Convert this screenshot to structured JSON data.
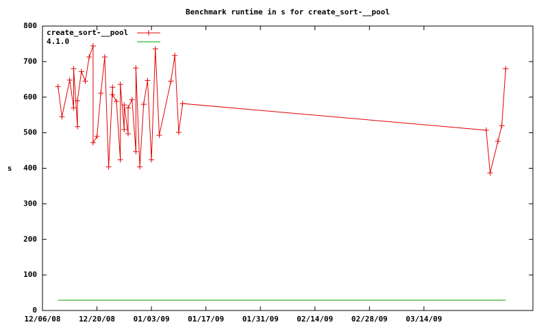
{
  "chart_data": {
    "type": "line",
    "title": "Benchmark runtime in s for create_sort-__pool",
    "y_label": "s",
    "xlim": [
      "2008-12-06",
      "2009-04-11"
    ],
    "xticks": [
      {
        "value": "2008-12-06",
        "label": "12/06/08"
      },
      {
        "value": "2008-12-20",
        "label": "12/20/08"
      },
      {
        "value": "2009-01-03",
        "label": "01/03/09"
      },
      {
        "value": "2009-01-17",
        "label": "01/17/09"
      },
      {
        "value": "2009-01-31",
        "label": "01/31/09"
      },
      {
        "value": "2009-02-14",
        "label": "02/14/09"
      },
      {
        "value": "2009-02-28",
        "label": "02/28/09"
      },
      {
        "value": "2009-03-14",
        "label": "03/14/09"
      }
    ],
    "ylim": [
      0,
      800
    ],
    "yticks": [
      0,
      100,
      200,
      300,
      400,
      500,
      600,
      700,
      800
    ],
    "legend": "top-left",
    "series": [
      {
        "name": "create_sort-__pool",
        "color": "#e00000",
        "marker": "plus",
        "x": [
          "2008-12-10",
          "2008-12-11",
          "2008-12-13",
          "2008-12-14",
          "2008-12-14",
          "2008-12-15",
          "2008-12-15",
          "2008-12-16",
          "2008-12-17",
          "2008-12-18",
          "2008-12-19",
          "2008-12-19",
          "2008-12-20",
          "2008-12-21",
          "2008-12-22",
          "2008-12-23",
          "2008-12-24",
          "2008-12-24",
          "2008-12-25",
          "2008-12-26",
          "2008-12-26",
          "2008-12-27",
          "2008-12-27",
          "2008-12-28",
          "2008-12-28",
          "2008-12-29",
          "2008-12-30",
          "2008-12-30",
          "2008-12-31",
          "2009-01-01",
          "2009-01-02",
          "2009-01-03",
          "2009-01-04",
          "2009-01-05",
          "2009-01-08",
          "2009-01-09",
          "2009-01-10",
          "2009-01-11",
          "2009-03-30",
          "2009-03-31",
          "2009-04-02",
          "2009-04-03",
          "2009-04-04"
        ],
        "values": [
          630,
          545,
          648,
          570,
          680,
          517,
          590,
          672,
          645,
          713,
          744,
          472,
          490,
          611,
          713,
          404,
          628,
          607,
          588,
          424,
          636,
          509,
          578,
          497,
          570,
          593,
          447,
          682,
          404,
          580,
          647,
          424,
          736,
          493,
          645,
          717,
          501,
          582,
          507,
          387,
          476,
          520,
          680
        ]
      },
      {
        "name": "4.1.0",
        "color": "#00a000",
        "marker": "none",
        "x": [
          "2008-12-10",
          "2009-04-04"
        ],
        "values": [
          29,
          29
        ]
      }
    ]
  }
}
